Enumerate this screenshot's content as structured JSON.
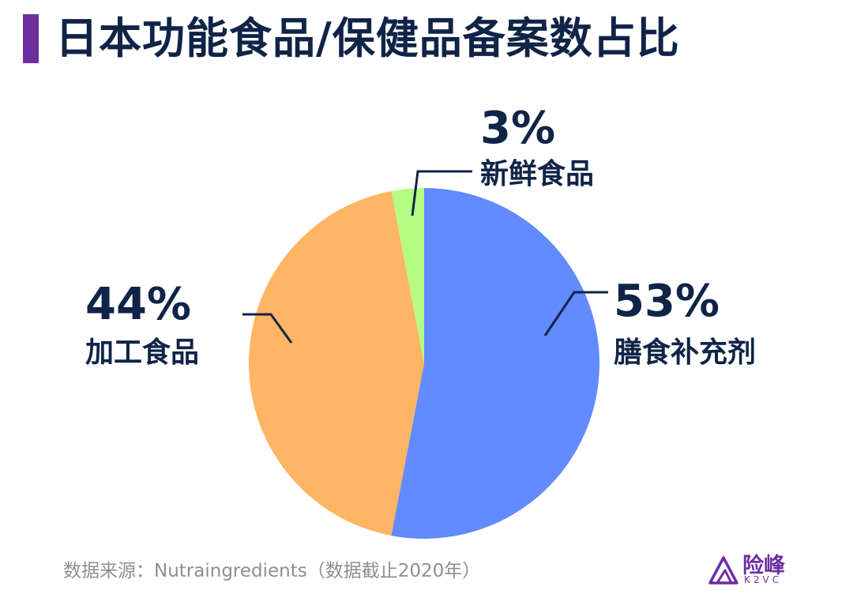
{
  "title": "日本功能食品/保健品备案数占比",
  "accent_color": "#6d2fa0",
  "chart_data": {
    "type": "pie",
    "title": "日本功能食品/保健品备案数占比",
    "slices": [
      {
        "label": "膳食补充剂",
        "value": 53,
        "value_label": "53%",
        "color": "#618bfe"
      },
      {
        "label": "加工食品",
        "value": 44,
        "value_label": "44%",
        "color": "#ffb563"
      },
      {
        "label": "新鲜食品",
        "value": 3,
        "value_label": "3%",
        "color": "#b5fe83"
      }
    ],
    "start": "12 o'clock",
    "direction": "clockwise"
  },
  "source": "数据来源：Nutraingredients（数据截止2020年）",
  "logo": {
    "name_cn": "险峰",
    "name_en": "K2VC",
    "icon": "mountain-triangle-icon"
  }
}
